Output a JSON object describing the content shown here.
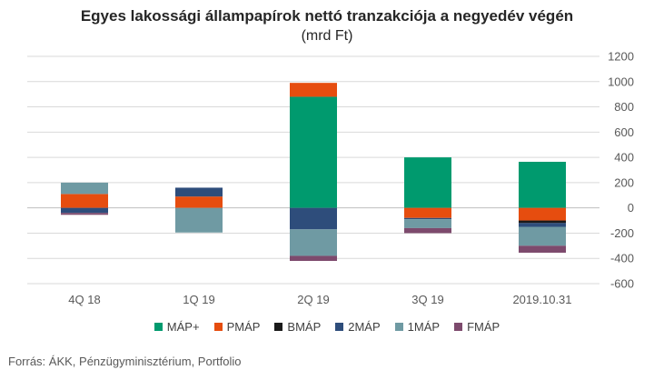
{
  "chart_data": {
    "type": "bar",
    "stacked": true,
    "title": "Egyes lakossági állampapírok nettó tranzakciója a negyedév végén",
    "subtitle": "(mrd Ft)",
    "categories": [
      "4Q 18",
      "1Q 19",
      "2Q 19",
      "3Q 19",
      "2019.10.31"
    ],
    "yaxis_position": "right",
    "ylim": [
      -600,
      1200
    ],
    "yticks": [
      -600,
      -400,
      -200,
      0,
      200,
      400,
      600,
      800,
      1000,
      1200
    ],
    "grid": true,
    "legend_position": "bottom",
    "series": [
      {
        "name": "MÁP+",
        "color": "#009a6e",
        "values": [
          0,
          0,
          880,
          400,
          365
        ]
      },
      {
        "name": "PMÁP",
        "color": "#e64d0f",
        "values": [
          110,
          90,
          110,
          -80,
          -100
        ]
      },
      {
        "name": "BMÁP",
        "color": "#1a1a1a",
        "values": [
          0,
          0,
          0,
          0,
          -20
        ]
      },
      {
        "name": "2MÁP",
        "color": "#2e4d7b",
        "values": [
          -40,
          70,
          -170,
          -10,
          -30
        ]
      },
      {
        "name": "1MÁP",
        "color": "#6f9aa3",
        "values": [
          90,
          -195,
          -210,
          -70,
          -150
        ]
      },
      {
        "name": "FMÁP",
        "color": "#7d4a6d",
        "values": [
          -15,
          0,
          -40,
          -40,
          -55
        ]
      }
    ]
  },
  "source": "Forrás: ÁKK, Pénzügyminisztérium, Portfolio"
}
